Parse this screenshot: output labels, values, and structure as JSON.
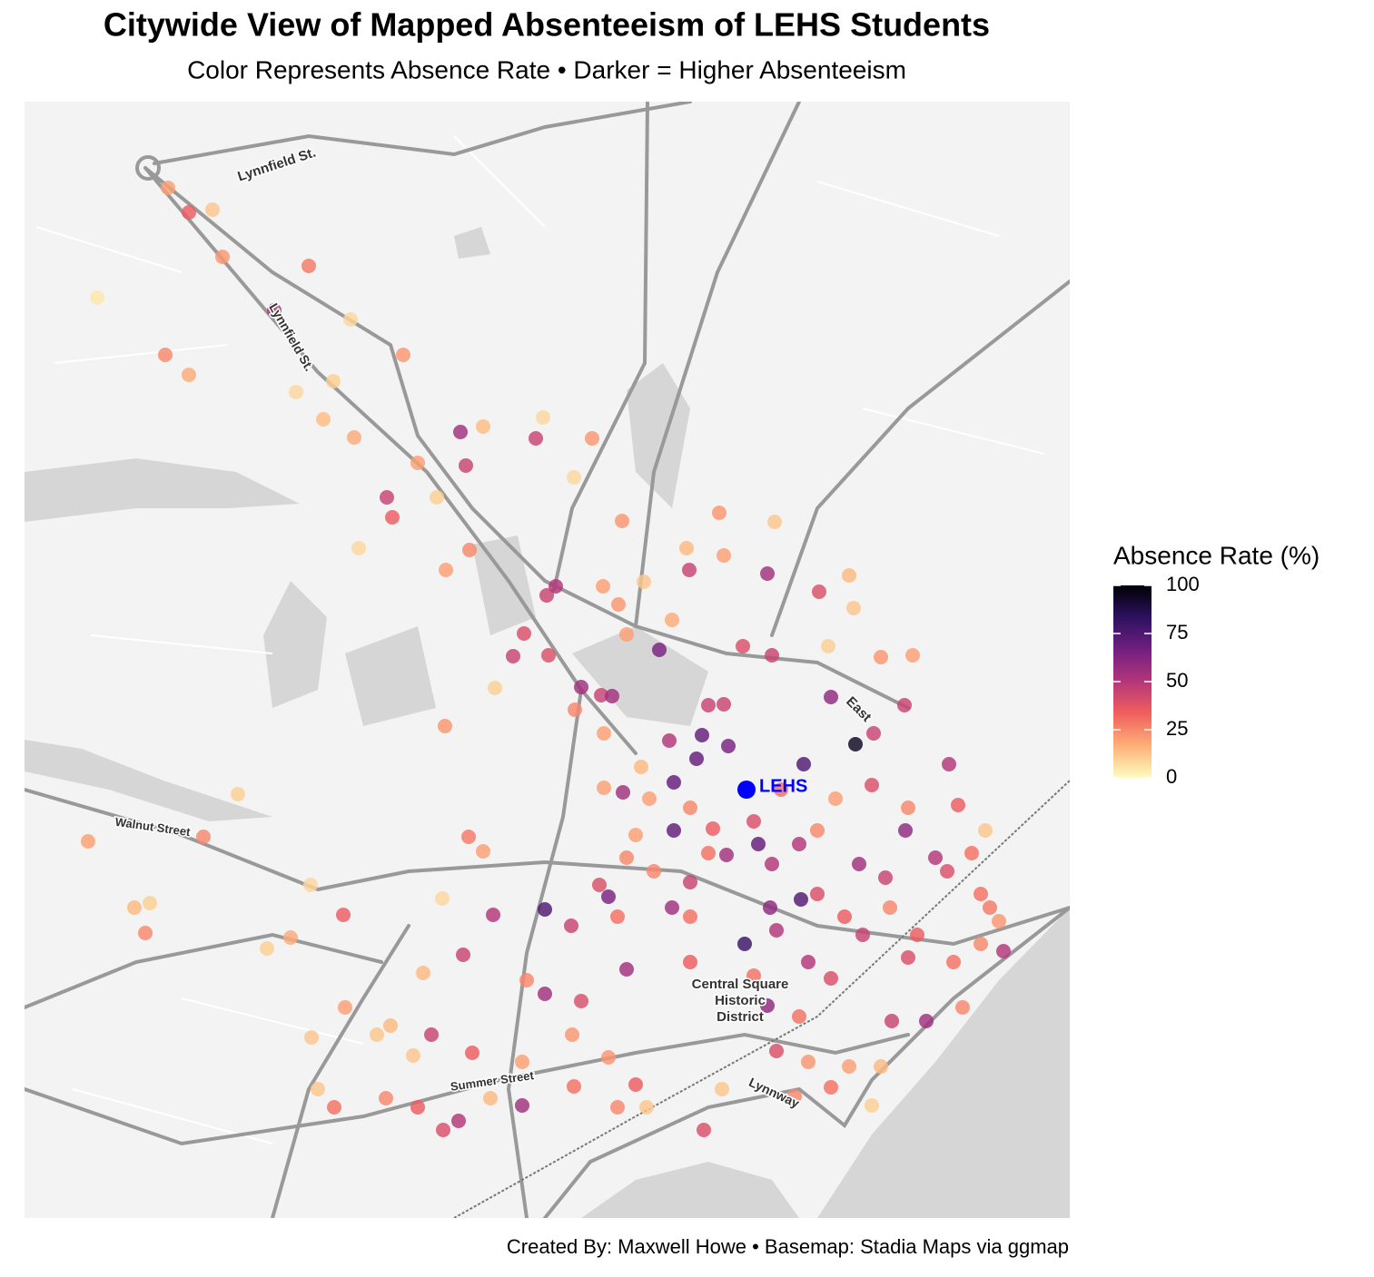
{
  "chart_data": {
    "type": "scatter",
    "title": "Citywide View of Mapped Absenteeism of LEHS Students",
    "subtitle": "Color Represents Absence Rate • Darker = Higher Absenteeism",
    "caption": "Created By: Maxwell Howe • Basemap: Stadia Maps via ggmap",
    "xlim": [
      -71.03,
      -70.9149
    ],
    "ylim": [
      42.41,
      42.533
    ],
    "x": [
      -71.0142,
      -71.0119,
      -71.0093,
      -71.0082,
      -70.9987,
      -71.022,
      -71.0025,
      -70.9941,
      -71.0145,
      -71.0119,
      -70.9883,
      -70.996,
      -71.0001,
      -70.9971,
      -70.9937,
      -70.982,
      -70.9795,
      -70.9737,
      -70.9729,
      -70.9814,
      -70.9867,
      -70.9901,
      -70.9895,
      -70.9932,
      -70.9846,
      -70.981,
      -70.9836,
      -70.9675,
      -70.9695,
      -70.9642,
      -70.9535,
      -70.9571,
      -70.9482,
      -70.9474,
      -70.9568,
      -70.953,
      -70.9725,
      -70.9715,
      -70.9663,
      -70.9618,
      -70.9601,
      -70.9646,
      -70.9637,
      -70.9587,
      -70.975,
      -70.9762,
      -70.9723,
      -70.9687,
      -70.9665,
      -70.9653,
      -70.9694,
      -70.9782,
      -70.9837,
      -70.9662,
      -70.9509,
      -70.9477,
      -70.9425,
      -70.9392,
      -70.9387,
      -70.9415,
      -70.9357,
      -70.9322,
      -70.9412,
      -70.9331,
      -70.9385,
      -70.9365,
      -70.9547,
      -70.953,
      -70.9554,
      -70.9525,
      -70.956,
      -70.959,
      -70.9442,
      -70.9585,
      -70.9641,
      -70.9662,
      -70.9367,
      -70.9282,
      -70.9272,
      -70.9585,
      -70.9542,
      -70.9497,
      -70.9447,
      -70.9527,
      -70.9492,
      -70.933,
      -70.9297,
      -70.9242,
      -70.9667,
      -70.9607,
      -70.9567,
      -70.9477,
      -70.9381,
      -70.9352,
      -70.9284,
      -70.9657,
      -70.9587,
      -70.9445,
      -70.9479,
      -70.9427,
      -70.9727,
      -70.9698,
      -70.9647,
      -70.9507,
      -70.9472,
      -70.9377,
      -70.9317,
      -70.9222,
      -70.9247,
      -70.9227,
      -70.9637,
      -70.9567,
      -70.9497,
      -70.9437,
      -70.9412,
      -70.9327,
      -70.9277,
      -70.9817,
      -70.9784,
      -70.9727,
      -70.9747,
      -70.9687,
      -70.9482,
      -70.9447,
      -70.9345,
      -70.9307,
      -70.9267,
      -70.9852,
      -70.9807,
      -70.9897,
      -70.9947,
      -70.9872,
      -70.9752,
      -70.9697,
      -70.9657,
      -70.9472,
      -70.9437,
      -70.9392,
      -70.9357,
      -70.9695,
      -70.9627,
      -70.9412,
      -70.9452,
      -70.9367,
      -70.9532,
      -70.9752,
      -70.9822,
      -70.9839,
      -70.9867,
      -70.9787,
      -70.9959,
      -70.9902,
      -70.9977,
      -70.9615,
      -70.9647,
      -70.9552,
      -70.9912,
      -70.9984,
      -71.023,
      -71.0103,
      -71.0065,
      -71.0179,
      -71.0162,
      -71.0167,
      -71.0033,
      -71.0007,
      -70.9949,
      -70.9985,
      -70.9811,
      -70.9795,
      -70.984,
      -70.9861,
      -70.9621,
      -70.9612,
      -70.9567,
      -70.9467,
      -70.9407,
      -70.9327,
      -70.9627,
      -70.9637,
      -70.9427,
      -70.9257,
      -70.9237,
      -70.9247,
      -70.9567,
      -70.9397,
      -70.9547,
      -70.9347
    ],
    "y": [
      42.5235,
      42.5208,
      42.5211,
      42.5159,
      42.5149,
      42.5114,
      42.51,
      42.509,
      42.5051,
      42.5029,
      42.5051,
      42.5022,
      42.501,
      42.498,
      42.496,
      42.4966,
      42.4972,
      42.4959,
      42.4982,
      42.4929,
      42.4932,
      42.4894,
      42.4872,
      42.4838,
      42.4894,
      42.4836,
      42.4814,
      42.4959,
      42.4916,
      42.4868,
      42.4877,
      42.4838,
      42.481,
      42.4867,
      42.4814,
      42.483,
      42.4786,
      42.4796,
      42.4796,
      42.4801,
      42.4726,
      42.4776,
      42.4743,
      42.4759,
      42.4744,
      42.4719,
      42.472,
      42.4685,
      42.4676,
      42.4675,
      42.466,
      42.4684,
      42.4642,
      42.4634,
      42.473,
      42.472,
      42.479,
      42.4808,
      42.4772,
      42.473,
      42.4718,
      42.472,
      42.4674,
      42.4665,
      42.4622,
      42.4634,
      42.4665,
      42.4666,
      42.4632,
      42.462,
      42.4606,
      42.4626,
      42.46,
      42.458,
      42.4569,
      42.4574,
      42.4577,
      42.46,
      42.4555,
      42.4527,
      42.4529,
      42.4537,
      42.4512,
      42.45,
      42.4512,
      42.4527,
      42.4497,
      42.4527,
      42.4467,
      42.4482,
      42.447,
      42.449,
      42.449,
      42.4475,
      42.4482,
      42.4454,
      42.4442,
      42.4451,
      42.4442,
      42.4457,
      42.444,
      42.4422,
      42.4432,
      42.4402,
      42.4417,
      42.4412,
      42.4412,
      42.4394,
      42.4457,
      42.4427,
      42.4374,
      42.4382,
      42.4367,
      42.4382,
      42.4364,
      42.4387,
      42.4382,
      42.439,
      42.4434,
      42.4347,
      42.4362,
      42.4339,
      42.4334,
      42.4322,
      42.4317,
      42.4317,
      42.4332,
      42.4302,
      42.4282,
      42.4312,
      42.4332,
      42.4279,
      42.4272,
      42.4302,
      42.4277,
      42.4284,
      42.4272,
      42.4267,
      42.4267,
      42.4245,
      42.4247,
      42.4244,
      42.4234,
      42.4224,
      42.4242,
      42.4224,
      42.4207,
      42.4197,
      42.4222,
      42.4232,
      42.4222,
      42.4232,
      42.4242,
      42.4222,
      42.4222,
      42.4197,
      42.4302,
      42.4299,
      42.4515,
      42.452,
      42.4567,
      42.4442,
      42.4447,
      42.4414,
      42.4397,
      42.4409,
      42.4434,
      42.4467,
      42.452,
      42.4504,
      42.4452,
      42.437,
      42.4597,
      42.4562,
      42.4552,
      42.4572,
      42.4562,
      42.4552,
      42.4522,
      42.4497,
      42.4527,
      42.4502,
      42.4442,
      42.4402,
      42.4432,
      42.4432,
      42.4502,
      42.4442
    ],
    "values": [
      20,
      35,
      12,
      22,
      28,
      5,
      50,
      8,
      25,
      18,
      22,
      10,
      8,
      14,
      18,
      55,
      14,
      45,
      8,
      45,
      20,
      45,
      35,
      8,
      10,
      25,
      20,
      22,
      8,
      22,
      22,
      15,
      55,
      12,
      45,
      20,
      45,
      50,
      20,
      12,
      65,
      22,
      20,
      18,
      40,
      45,
      40,
      55,
      45,
      55,
      25,
      10,
      22,
      20,
      40,
      45,
      40,
      15,
      12,
      10,
      22,
      20,
      60,
      45,
      95,
      45,
      45,
      45,
      70,
      65,
      70,
      50,
      75,
      70,
      55,
      20,
      40,
      50,
      35,
      70,
      35,
      40,
      50,
      55,
      70,
      60,
      50,
      12,
      40,
      25,
      45,
      50,
      55,
      45,
      40,
      65,
      55,
      75,
      60,
      40,
      75,
      45,
      30,
      80,
      50,
      45,
      35,
      50,
      30,
      22,
      55,
      35,
      30,
      50,
      40,
      40,
      30,
      45,
      50,
      55,
      25,
      40,
      60,
      30,
      45,
      55,
      25,
      45,
      35,
      15,
      20,
      12,
      20,
      22,
      22,
      40,
      22,
      20,
      15,
      30,
      35,
      30,
      25,
      10,
      12,
      55,
      50,
      40,
      35,
      15,
      30,
      25,
      12,
      12,
      25,
      40,
      12,
      12,
      20,
      25,
      10,
      15,
      10,
      25,
      10,
      18,
      35,
      8,
      28,
      20,
      8,
      15,
      15,
      20,
      25,
      30,
      20,
      25,
      20,
      25,
      25,
      30,
      28,
      25,
      30,
      35,
      30,
      25
    ],
    "colorbar": {
      "title": "Absence Rate (%)",
      "lim": [
        0,
        100
      ],
      "ticks": [
        0,
        25,
        50,
        75,
        100
      ],
      "colors": [
        "#fcfdbf",
        "#feb078",
        "#f1605d",
        "#b5367a",
        "#721f81",
        "#2d1160",
        "#000004"
      ]
    },
    "marker": {
      "label": "LEHS",
      "x": -70.9505,
      "y": 42.4572,
      "color": "#0000ff"
    },
    "map_labels": [
      "Lynnfield St.",
      "Lynnfield St.",
      "Walnut Street",
      "Summer Street",
      "Lynnway",
      "Central Square",
      "Historic",
      "District",
      "East"
    ]
  }
}
